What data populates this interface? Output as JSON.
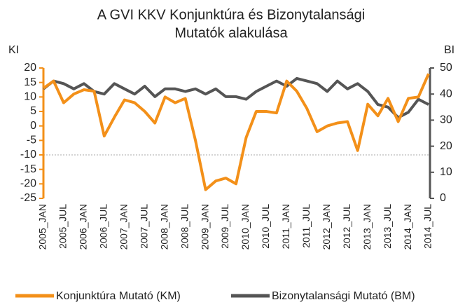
{
  "chart_data": {
    "type": "line",
    "title": [
      "A GVI KKV Konjunktúra és Bizonytalansági",
      "Mutatók alakulása"
    ],
    "y_label": "KI",
    "y2_label": "BI",
    "categories": [
      "2005_JAN",
      null,
      "2005_JUL",
      null,
      "2006_JAN",
      null,
      "2006_JUL",
      null,
      "2007_JAN",
      null,
      "2007_JUL",
      null,
      "2008_JAN",
      null,
      "2008_JUL",
      null,
      "2009_JAN",
      null,
      "2009_JUL",
      null,
      "2010_JAN",
      null,
      "2010_JUL",
      null,
      "2011_JAN",
      null,
      "2011_JUL",
      null,
      "2012_JAN",
      null,
      "2012_JUL",
      null,
      "2013_JAN",
      null,
      "2013_JUL",
      null,
      "2014_JAN",
      null,
      "2014_JUL"
    ],
    "series": [
      {
        "name": "Konjunktúra Mutató (KM)",
        "color": "#f39019",
        "axis": "y",
        "values": [
          13,
          15.5,
          8,
          11,
          12.5,
          12,
          -3.5,
          3,
          9,
          8,
          5,
          1,
          10,
          8,
          9.5,
          -5,
          -22,
          -19,
          -18,
          -20,
          -4,
          5,
          5,
          4.5,
          15.5,
          12,
          6,
          -2,
          0,
          1,
          1.5,
          -8.5,
          7.5,
          3.5,
          9.5,
          1.5,
          9.5,
          10,
          18
        ]
      },
      {
        "name": "Bizonytalansági Mutató (BM)",
        "color": "#555555",
        "axis": "y2",
        "values": [
          42,
          45,
          44,
          42,
          44,
          41,
          40,
          44,
          42,
          40,
          43,
          39,
          42,
          42,
          41,
          42,
          40,
          42,
          39,
          39,
          38,
          41,
          43,
          45,
          43,
          46,
          45,
          44,
          41,
          45,
          42,
          44,
          41,
          36,
          35,
          31,
          33,
          38,
          36
        ]
      }
    ],
    "ylim": [
      -25,
      20
    ],
    "yticks": [
      -25,
      -20,
      -15,
      -10,
      -5,
      0,
      5,
      10,
      15,
      20
    ],
    "y2lim": [
      0,
      50
    ],
    "y2ticks": [
      0,
      10,
      20,
      30,
      40,
      50
    ],
    "hline": -10,
    "legend": "bottom"
  }
}
